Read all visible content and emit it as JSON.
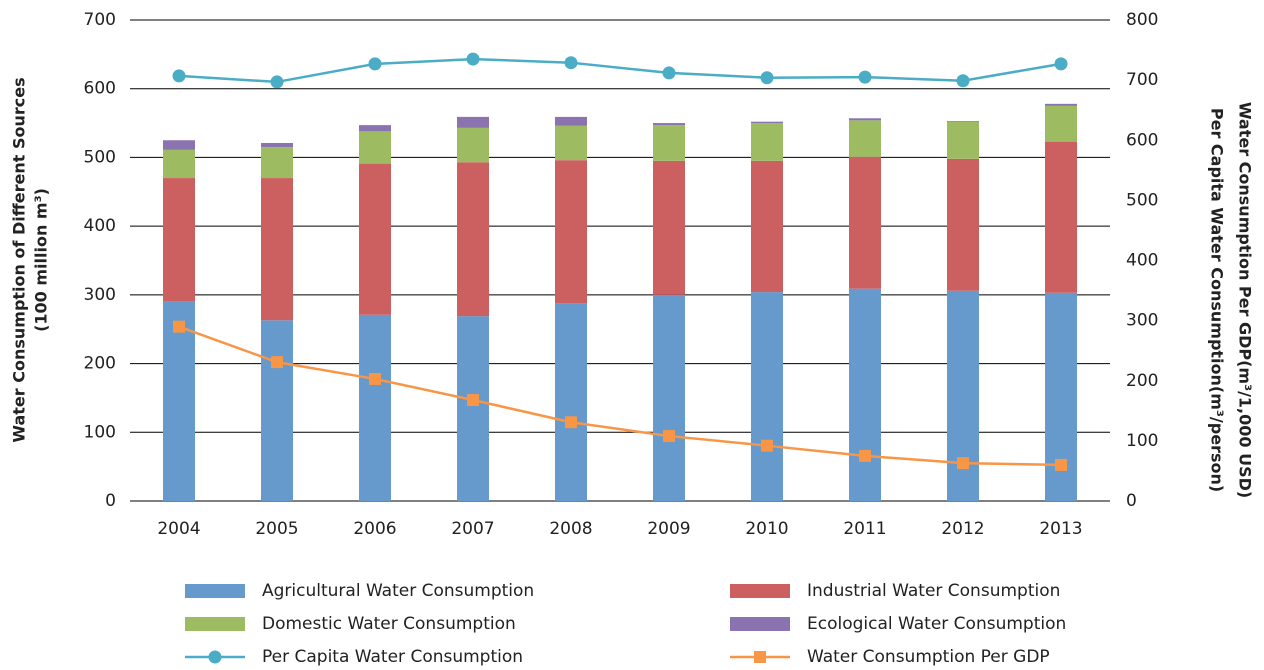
{
  "chart_data": {
    "type": "bar",
    "stacked": true,
    "categories": [
      "2004",
      "2005",
      "2006",
      "2007",
      "2008",
      "2009",
      "2010",
      "2011",
      "2012",
      "2013"
    ],
    "y_label": [
      "Water Consumption of Different Sources",
      "(100 million m³)"
    ],
    "y2_label": [
      "Per Capita Water Consumption(m³/person)",
      "Water Consumption Per GDP(m³/1,000 USD)"
    ],
    "ylim": [
      0,
      700
    ],
    "yticks": [
      0,
      100,
      200,
      300,
      400,
      500,
      600,
      700
    ],
    "y2lim": [
      0,
      800
    ],
    "y2ticks": [
      0,
      100,
      200,
      300,
      400,
      500,
      600,
      700,
      800
    ],
    "grid": true,
    "legend": "bottom",
    "series": [
      {
        "name": "Agricultural Water Consumption",
        "type": "bar",
        "color": "#6699cc",
        "values": [
          290,
          263,
          271,
          269,
          288,
          300,
          304,
          309,
          306,
          303
        ]
      },
      {
        "name": "Industrial Water Consumption",
        "type": "bar",
        "color": "#cc6060",
        "values": [
          180,
          207,
          220,
          224,
          208,
          195,
          191,
          192,
          192,
          220
        ]
      },
      {
        "name": "Domestic Water Consumption",
        "type": "bar",
        "color": "#9dbb61",
        "values": [
          41,
          45,
          47,
          50,
          50,
          52,
          55,
          53,
          54,
          52
        ]
      },
      {
        "name": "Ecological Water Consumption",
        "type": "bar",
        "color": "#8b73b0",
        "values": [
          14,
          6,
          9,
          16,
          13,
          3,
          2,
          3,
          1,
          3
        ]
      },
      {
        "name": "Per Capita Water Consumption",
        "type": "line",
        "axis": "y2",
        "marker": "circle",
        "color": "#4bacc6",
        "values": [
          707,
          697,
          727,
          735,
          729,
          712,
          704,
          705,
          699,
          727
        ]
      },
      {
        "name": "Water Consumption Per GDP",
        "type": "line",
        "axis": "y2",
        "marker": "square",
        "color": "#f79646",
        "values": [
          290,
          231,
          203,
          168,
          131,
          108,
          92,
          75,
          63,
          60
        ]
      }
    ]
  }
}
